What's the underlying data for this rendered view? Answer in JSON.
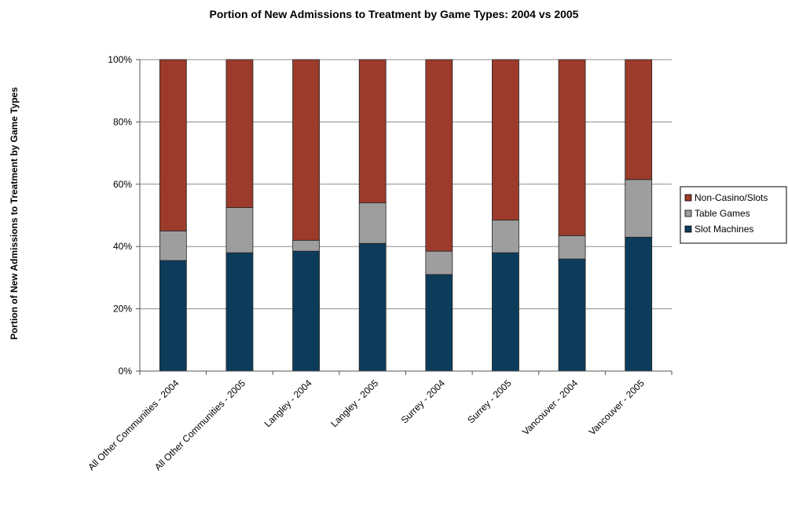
{
  "chart_data": {
    "type": "bar",
    "stacked": true,
    "title": "Portion of New Admissions to Treatment by Game Types: 2004 vs 2005",
    "ylabel": "Portion of New Admissions to Treatment by Game Types",
    "xlabel": "",
    "ylim": [
      0,
      100
    ],
    "y_ticks": [
      "0%",
      "20%",
      "40%",
      "60%",
      "80%",
      "100%"
    ],
    "grid": true,
    "legend_position": "right",
    "categories": [
      "All Other Communities - 2004",
      "All Other Communities - 2005",
      "Langley - 2004",
      "Langley - 2005",
      "Surrey - 2004",
      "Surrey - 2005",
      "Vancouver - 2004",
      "Vancouver - 2005"
    ],
    "series": [
      {
        "name": "Slot Machines",
        "color": "#0d3c5b",
        "values": [
          35.5,
          38,
          38.5,
          41,
          31,
          38,
          36,
          43
        ]
      },
      {
        "name": "Table Games",
        "color": "#9e9e9e",
        "values": [
          9.5,
          14.5,
          3.5,
          13,
          7.5,
          10.5,
          7.5,
          18.5
        ]
      },
      {
        "name": "Non-Casino/Slots",
        "color": "#9c3b2c",
        "values": [
          55,
          47.5,
          58,
          46,
          61.5,
          51.5,
          56.5,
          38.5
        ]
      }
    ],
    "legend_order": [
      "Non-Casino/Slots",
      "Table Games",
      "Slot Machines"
    ]
  }
}
